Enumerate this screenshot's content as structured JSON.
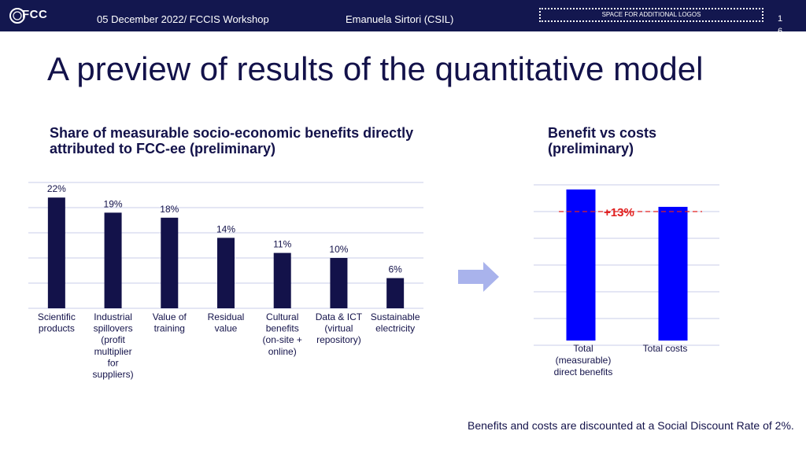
{
  "header": {
    "logo_text": "FCC",
    "date_event": "05 December 2022/ FCCIS Workshop",
    "author": "Emanuela Sirtori (CSIL)",
    "logos_placeholder": "SPACE FOR ADDITIONAL LOGOS",
    "page_number": "16"
  },
  "title": "A preview of results of the quantitative model",
  "footnote": "Benefits and costs are discounted at a Social Discount Rate of 2%.",
  "colors": {
    "header_bg": "#13174f",
    "bar_navy": "#13124a",
    "bar_blue": "#0000ff",
    "annotation_red": "#e02020",
    "arrow": "#a9b3ec",
    "grid": "#c8cce8"
  },
  "chart_data": [
    {
      "type": "bar",
      "title": "Share of measurable socio-economic benefits directly attributed to FCC-ee (preliminary)",
      "categories": [
        [
          "Scientific",
          "products"
        ],
        [
          "Industrial",
          "spillovers",
          "(profit",
          "multiplier",
          "for",
          "suppliers)"
        ],
        [
          "Value of",
          "training"
        ],
        [
          "Residual",
          "value"
        ],
        [
          "Cultural",
          "benefits",
          "(on-site +",
          "online)"
        ],
        [
          "Data & ICT",
          "(virtual",
          "repository)"
        ],
        [
          "Sustainable",
          "electricity"
        ]
      ],
      "values": [
        22,
        19,
        18,
        14,
        11,
        10,
        6
      ],
      "data_labels": [
        "22%",
        "19%",
        "18%",
        "14%",
        "11%",
        "10%",
        "6%"
      ],
      "unit": "%",
      "ylim": [
        0,
        25
      ],
      "grid": true,
      "legend": "none"
    },
    {
      "type": "bar",
      "title": "Benefit vs costs (preliminary)",
      "categories": [
        [
          "Total",
          "(measurable)",
          "direct benefits"
        ],
        [
          "Total costs"
        ]
      ],
      "values": [
        113,
        100
      ],
      "annotation": "+13%",
      "ylim": [
        0,
        120
      ],
      "grid": true,
      "legend": "none"
    }
  ]
}
